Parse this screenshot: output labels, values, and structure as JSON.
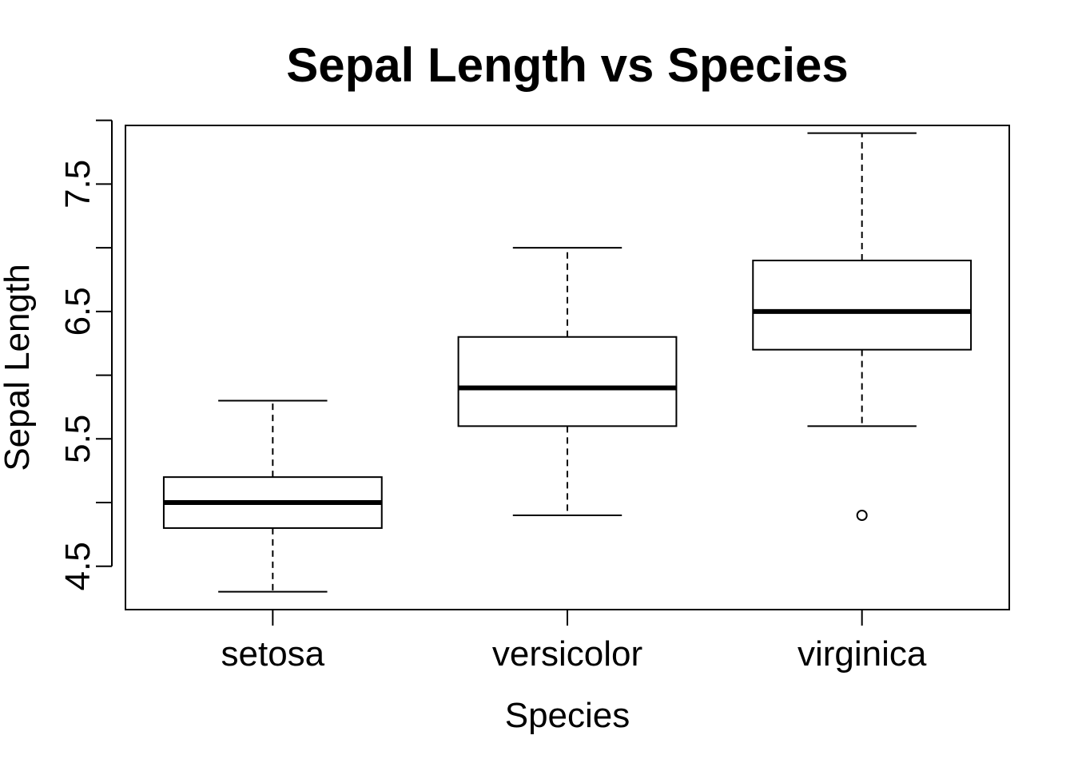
{
  "chart_data": {
    "type": "boxplot",
    "title": "Sepal Length vs Species",
    "xlabel": "Species",
    "ylabel": "Sepal Length",
    "ylim": [
      4.16,
      7.96
    ],
    "y_ticks": [
      4.5,
      5.0,
      5.5,
      6.0,
      6.5,
      7.0,
      7.5,
      8.0
    ],
    "y_tick_labels": [
      "4.5",
      "",
      "5.5",
      "",
      "6.5",
      "",
      "7.5",
      ""
    ],
    "grid": false,
    "legend": "none",
    "categories": [
      "setosa",
      "versicolor",
      "virginica"
    ],
    "boxes": [
      {
        "category": "setosa",
        "whisker_low": 4.3,
        "q1": 4.8,
        "median": 5.0,
        "q3": 5.2,
        "whisker_high": 5.8,
        "outliers": []
      },
      {
        "category": "versicolor",
        "whisker_low": 4.9,
        "q1": 5.6,
        "median": 5.9,
        "q3": 6.3,
        "whisker_high": 7.0,
        "outliers": []
      },
      {
        "category": "virginica",
        "whisker_low": 5.6,
        "q1": 6.2,
        "median": 6.5,
        "q3": 6.9,
        "whisker_high": 7.9,
        "outliers": [
          4.9
        ]
      }
    ],
    "colors": {
      "stroke": "#000000",
      "fill": "#ffffff"
    }
  }
}
